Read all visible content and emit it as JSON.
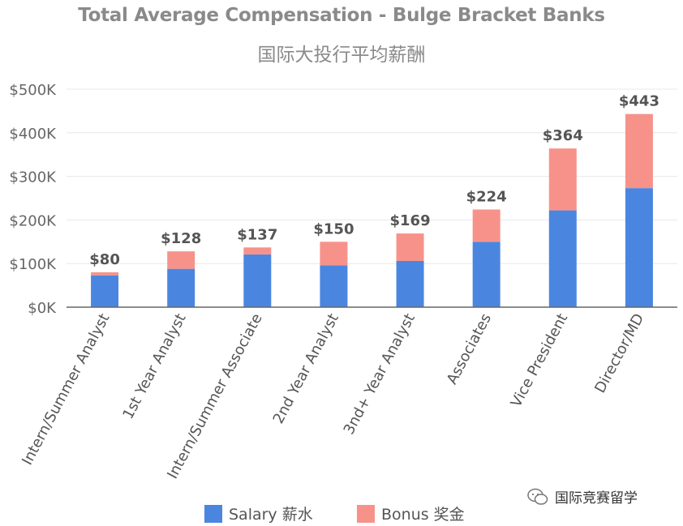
{
  "chart_data": {
    "type": "bar",
    "stacked": true,
    "title": "Total Average Compensation - Bulge Bracket Banks",
    "subtitle": "国际大投行平均薪酬",
    "categories": [
      "Intern/Summer Analyst",
      "1st Year Analyst",
      "Intern/Summer Associate",
      "2nd Year Analyst",
      "3nd+ Year Analyst",
      "Associates",
      "Vice President",
      "Director/MD"
    ],
    "series": [
      {
        "name": "Salary 薪水",
        "color": "#4a86e0",
        "values": [
          73,
          88,
          121,
          96,
          106,
          150,
          222,
          273
        ]
      },
      {
        "name": "Bonus 奖金",
        "color": "#f7928a",
        "values": [
          7,
          40,
          16,
          54,
          63,
          74,
          142,
          170
        ]
      }
    ],
    "totals": [
      80,
      128,
      137,
      150,
      169,
      224,
      364,
      443
    ],
    "total_labels": [
      "$80",
      "$128",
      "$137",
      "$150",
      "$169",
      "$224",
      "$364",
      "$443"
    ],
    "ylim": [
      0,
      500
    ],
    "yticks": [
      0,
      100,
      200,
      300,
      400,
      500
    ],
    "ytick_labels": [
      "$0K",
      "$100K",
      "$200K",
      "$300K",
      "$400K",
      "$500K"
    ],
    "grid": true,
    "legend_position": "bottom"
  },
  "watermark": {
    "text": "国际竞赛留学",
    "icon": "wechat-icon"
  }
}
